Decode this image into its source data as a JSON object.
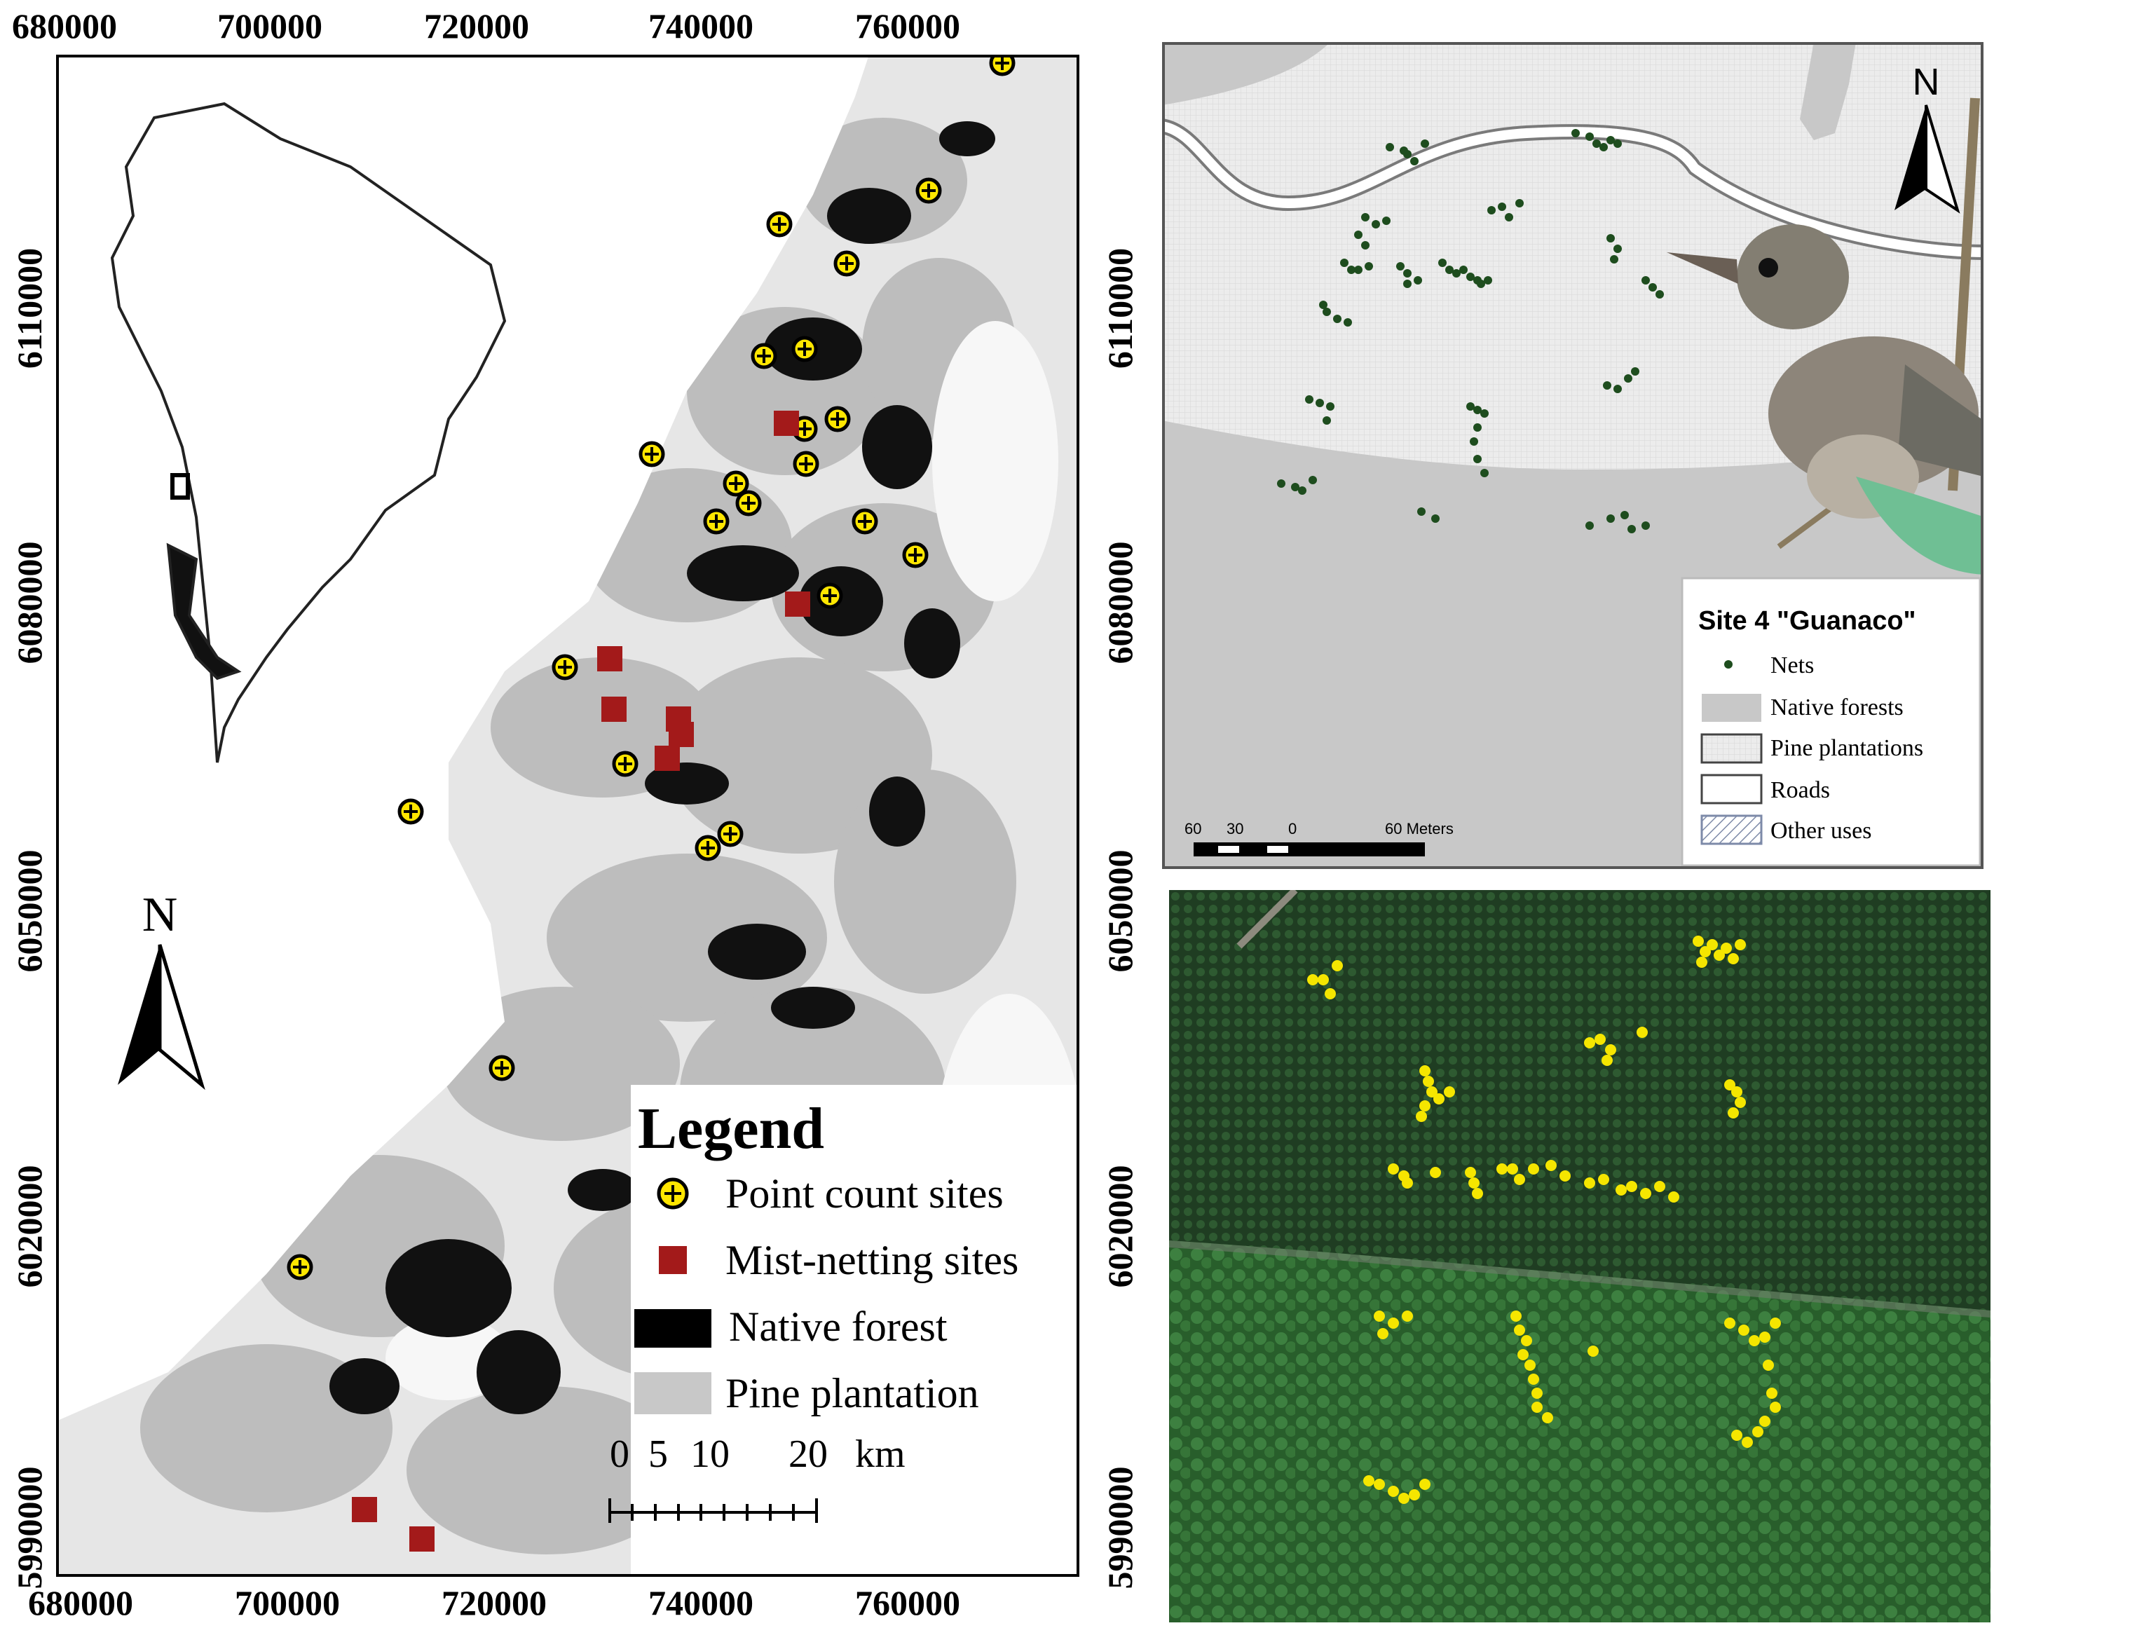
{
  "main_map": {
    "x_ticks": [
      "680000",
      "700000",
      "720000",
      "740000",
      "760000"
    ],
    "y_ticks": [
      "6110000",
      "6080000",
      "6050000",
      "6020000",
      "5990000"
    ],
    "north_label": "N",
    "legend": {
      "title": "Legend",
      "items": [
        {
          "label": "Point count sites",
          "symbol": "point-count"
        },
        {
          "label": "Mist-netting sites",
          "symbol": "mist-net"
        },
        {
          "label": "Native forest",
          "symbol": "native"
        },
        {
          "label": "Pine plantation",
          "symbol": "pine"
        }
      ]
    },
    "scalebar": {
      "labels": [
        "0",
        "5",
        "10",
        "20"
      ],
      "unit": "km"
    },
    "colors": {
      "point_fill": "#ffe600",
      "mist_net": "#a31a1a",
      "native_forest": "#000000",
      "pine": "#c8c8c8"
    }
  },
  "site_map": {
    "north_label": "N",
    "legend": {
      "title": "Site 4 \"Guanaco\"",
      "items": [
        {
          "label": "Nets",
          "symbol": "nets"
        },
        {
          "label": "Native forests",
          "symbol": "native"
        },
        {
          "label": "Pine plantations",
          "symbol": "pine"
        },
        {
          "label": "Roads",
          "symbol": "roads"
        },
        {
          "label": "Other uses",
          "symbol": "other"
        }
      ]
    },
    "scalebar": {
      "labels": [
        "60",
        "30",
        "0",
        "60 Meters"
      ]
    },
    "colors": {
      "nets": "#1e4d1e",
      "native_forest": "#c8c8c8",
      "pine": "#ececec"
    }
  },
  "aerial": {
    "colors": {
      "nets": "#f5e600",
      "pine_canopy": "#1f3d22",
      "native_canopy": "#2f6a30"
    }
  }
}
